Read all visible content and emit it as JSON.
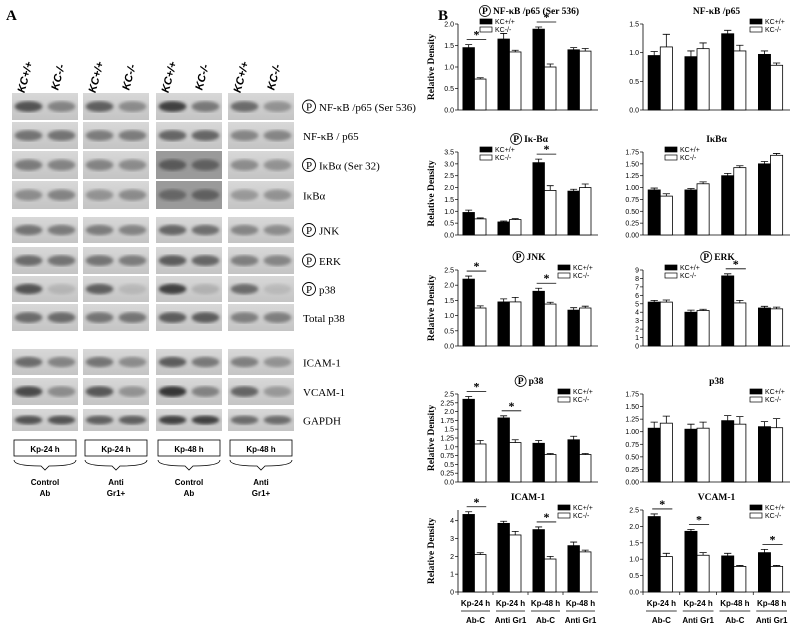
{
  "panel_a": {
    "label": "A",
    "lanes": [
      "KC+/+",
      "KC-/-",
      "KC+/+",
      "KC-/-",
      "KC+/+",
      "KC-/-",
      "KC+/+",
      "KC-/-"
    ],
    "rows": [
      {
        "label": "NF-κB /p65 (Ser 536)",
        "marker": "P"
      },
      {
        "label": "NF-κB / p65"
      },
      {
        "label": "IκBα  (Ser 32)",
        "marker": "P"
      },
      {
        "label": "IκBα"
      },
      {
        "label": "JNK",
        "marker": "P"
      },
      {
        "label": "ERK",
        "marker": "P"
      },
      {
        "label": "p38",
        "marker": "P"
      },
      {
        "label": "Total p38"
      },
      {
        "label": "ICAM-1"
      },
      {
        "label": "VCAM-1"
      },
      {
        "label": "GAPDH"
      }
    ],
    "time_labels": [
      "Kp-24 h",
      "Kp-24 h",
      "Kp-48 h",
      "Kp-48 h"
    ],
    "treatment_labels": [
      [
        "Control",
        "Ab"
      ],
      [
        "Anti",
        "Gr1+"
      ],
      [
        "Control",
        "Ab"
      ],
      [
        "Anti",
        "Gr1+"
      ]
    ]
  },
  "panel_b": {
    "label": "B"
  },
  "chart_data": [
    {
      "type": "bar",
      "title": "NF-κB /p65 (Ser 536)",
      "title_marker": "P",
      "ylabel": "Relative Density",
      "ylim": [
        0,
        2.0
      ],
      "yticks": [
        {
          "value": 0,
          "label": "0.0"
        },
        0.5,
        {
          "value": 1,
          "label": "1.0"
        },
        1.5,
        {
          "value": 2,
          "label": "2.0"
        }
      ],
      "series": [
        {
          "name": "KC+/+",
          "color": "#000000",
          "values": [
            1.45,
            1.65,
            1.88,
            1.4
          ],
          "errors": [
            0.07,
            0.13,
            0.05,
            0.05
          ]
        },
        {
          "name": "KC-/-",
          "color": "#ffffff",
          "values": [
            0.72,
            1.35,
            1.0,
            1.37
          ],
          "errors": [
            0.03,
            0.04,
            0.07,
            0.06
          ]
        }
      ],
      "significance": [
        {
          "group": 0,
          "label": "*"
        },
        {
          "group": 2,
          "label": "*"
        }
      ],
      "legend": "upper-left"
    },
    {
      "type": "bar",
      "title": "NF-κB /p65",
      "ylim": [
        0,
        1.5
      ],
      "yticks": [
        {
          "value": 0,
          "label": "0.0"
        },
        0.5,
        {
          "value": 1,
          "label": "1.0"
        },
        1.5
      ],
      "series": [
        {
          "name": "KC+/+",
          "color": "#000000",
          "values": [
            0.95,
            0.93,
            1.33,
            0.97
          ],
          "errors": [
            0.07,
            0.1,
            0.06,
            0.06
          ]
        },
        {
          "name": "KC-/-",
          "color": "#ffffff",
          "values": [
            1.1,
            1.07,
            1.03,
            0.78
          ],
          "errors": [
            0.22,
            0.1,
            0.1,
            0.04
          ]
        }
      ],
      "significance": []
    },
    {
      "type": "bar",
      "title": "Iκ-Bα",
      "title_marker": "P",
      "ylabel": "Relative Density",
      "ylim": [
        0,
        3.5
      ],
      "yticks": [
        {
          "value": 0,
          "label": "0.0"
        },
        0.5,
        {
          "value": 1,
          "label": "1.0"
        },
        1.5,
        {
          "value": 2,
          "label": "2.0"
        },
        2.5,
        {
          "value": 3,
          "label": "3.0"
        },
        3.5
      ],
      "series": [
        {
          "name": "KC+/+",
          "color": "#000000",
          "values": [
            0.95,
            0.55,
            3.05,
            1.85
          ],
          "errors": [
            0.1,
            0.04,
            0.15,
            0.08
          ]
        },
        {
          "name": "KC-/-",
          "color": "#ffffff",
          "values": [
            0.68,
            0.65,
            1.88,
            2.0
          ],
          "errors": [
            0.04,
            0.04,
            0.2,
            0.15
          ]
        }
      ],
      "significance": [
        {
          "group": 2,
          "label": "*"
        }
      ],
      "legend": "upper-left"
    },
    {
      "type": "bar",
      "title": "IκBα",
      "ylim": [
        0,
        1.75
      ],
      "yticks": [
        {
          "value": 0,
          "label": "0.00"
        },
        0.25,
        {
          "value": 0.5,
          "label": "0.50"
        },
        0.75,
        {
          "value": 1,
          "label": "1.00"
        },
        1.25,
        {
          "value": 1.5,
          "label": "1.50"
        },
        1.75
      ],
      "series": [
        {
          "name": "KC+/+",
          "color": "#000000",
          "values": [
            0.95,
            0.95,
            1.25,
            1.5
          ],
          "errors": [
            0.04,
            0.03,
            0.05,
            0.05
          ]
        },
        {
          "name": "KC-/-",
          "color": "#ffffff",
          "values": [
            0.82,
            1.08,
            1.42,
            1.68
          ],
          "errors": [
            0.05,
            0.04,
            0.04,
            0.04
          ]
        }
      ],
      "significance": [],
      "legend": "upper-left"
    },
    {
      "type": "bar",
      "title": "JNK",
      "title_marker": "P",
      "ylabel": "Relative Density",
      "ylim": [
        0,
        2.5
      ],
      "yticks": [
        {
          "value": 0,
          "label": "0.0"
        },
        0.5,
        {
          "value": 1,
          "label": "1.0"
        },
        1.5,
        {
          "value": 2,
          "label": "2.0"
        },
        2.5
      ],
      "series": [
        {
          "name": "KC+/+",
          "color": "#000000",
          "values": [
            2.2,
            1.45,
            1.8,
            1.18
          ],
          "errors": [
            0.1,
            0.1,
            0.1,
            0.08
          ]
        },
        {
          "name": "KC-/-",
          "color": "#ffffff",
          "values": [
            1.25,
            1.45,
            1.38,
            1.25
          ],
          "errors": [
            0.07,
            0.15,
            0.06,
            0.06
          ]
        }
      ],
      "significance": [
        {
          "group": 0,
          "label": "*"
        },
        {
          "group": 2,
          "label": "*"
        }
      ],
      "legend": "upper-right"
    },
    {
      "type": "bar",
      "title": "ERK",
      "title_marker": "P",
      "ylim": [
        0,
        9
      ],
      "yticks": [
        0,
        1,
        2,
        3,
        4,
        5,
        6,
        7,
        8,
        9
      ],
      "series": [
        {
          "name": "KC+/+",
          "color": "#000000",
          "values": [
            5.2,
            4.0,
            8.3,
            4.5
          ],
          "errors": [
            0.2,
            0.25,
            0.25,
            0.2
          ]
        },
        {
          "name": "KC-/-",
          "color": "#ffffff",
          "values": [
            5.2,
            4.2,
            5.1,
            4.4
          ],
          "errors": [
            0.25,
            0.15,
            0.3,
            0.2
          ]
        }
      ],
      "significance": [
        {
          "group": 2,
          "label": "*"
        }
      ],
      "legend": "upper-left"
    },
    {
      "type": "bar",
      "title": "p38",
      "title_marker": "P",
      "ylabel": "Relative Density",
      "ylim": [
        0,
        2.5
      ],
      "yticks": [
        {
          "value": 0,
          "label": "0.0"
        },
        0.25,
        {
          "value": 0.5,
          "label": "0.5"
        },
        0.75,
        {
          "value": 1,
          "label": "1.0"
        },
        1.25,
        1.5,
        1.75,
        {
          "value": 2,
          "label": "2.0"
        },
        2.25,
        2.5
      ],
      "series": [
        {
          "name": "KC+/+",
          "color": "#000000",
          "values": [
            2.35,
            1.82,
            1.1,
            1.2
          ],
          "errors": [
            0.08,
            0.06,
            0.08,
            0.1
          ]
        },
        {
          "name": "KC-/-",
          "color": "#ffffff",
          "values": [
            1.08,
            1.12,
            0.78,
            0.78
          ],
          "errors": [
            0.1,
            0.08,
            0.03,
            0.03
          ]
        }
      ],
      "significance": [
        {
          "group": 0,
          "label": "*"
        },
        {
          "group": 1,
          "label": "*"
        }
      ],
      "legend": "upper-right"
    },
    {
      "type": "bar",
      "title": "p38",
      "ylim": [
        0,
        1.75
      ],
      "yticks": [
        {
          "value": 0,
          "label": "0.00"
        },
        0.25,
        {
          "value": 0.5,
          "label": "0.50"
        },
        0.75,
        {
          "value": 1,
          "label": "1.00"
        },
        1.25,
        {
          "value": 1.5,
          "label": "1.50"
        },
        1.75
      ],
      "series": [
        {
          "name": "KC+/+",
          "color": "#000000",
          "values": [
            1.07,
            1.05,
            1.22,
            1.1
          ],
          "errors": [
            0.12,
            0.1,
            0.1,
            0.1
          ]
        },
        {
          "name": "KC-/-",
          "color": "#ffffff",
          "values": [
            1.17,
            1.07,
            1.15,
            1.08
          ],
          "errors": [
            0.14,
            0.12,
            0.15,
            0.18
          ]
        }
      ],
      "significance": [],
      "legend": "upper-right"
    },
    {
      "type": "bar",
      "title": "ICAM-1",
      "ylabel": "Relative Density",
      "ylim": [
        0,
        4.6
      ],
      "yticks": [
        0,
        1,
        2,
        3,
        4
      ],
      "categories": [
        "Ab-C",
        "Anti Gr1",
        "Ab-C",
        "Anti Gr1"
      ],
      "timepoints": [
        "Kp-24 h",
        "Kp-24 h",
        "Kp-48 h",
        "Kp-48 h"
      ],
      "series": [
        {
          "name": "KC+/+",
          "color": "#000000",
          "values": [
            4.35,
            3.85,
            3.5,
            2.6
          ],
          "errors": [
            0.15,
            0.12,
            0.15,
            0.2
          ]
        },
        {
          "name": "KC-/-",
          "color": "#ffffff",
          "values": [
            2.1,
            3.2,
            1.85,
            2.25
          ],
          "errors": [
            0.1,
            0.2,
            0.15,
            0.1
          ]
        }
      ],
      "significance": [
        {
          "group": 0,
          "label": "*"
        },
        {
          "group": 2,
          "label": "*"
        }
      ],
      "legend": "upper-right"
    },
    {
      "type": "bar",
      "title": "VCAM-1",
      "ylim": [
        0,
        2.5
      ],
      "yticks": [
        {
          "value": 0,
          "label": "0.0"
        },
        0.5,
        {
          "value": 1,
          "label": "1.0"
        },
        1.5,
        {
          "value": 2,
          "label": "2.0"
        },
        2.5
      ],
      "categories": [
        "Ab-C",
        "Anti Gr1",
        "Ab-C",
        "Anti Gr1"
      ],
      "timepoints": [
        "Kp-24 h",
        "Kp-24 h",
        "Kp-48 h",
        "Kp-48 h"
      ],
      "series": [
        {
          "name": "KC+/+",
          "color": "#000000",
          "values": [
            2.3,
            1.85,
            1.1,
            1.2
          ],
          "errors": [
            0.08,
            0.06,
            0.08,
            0.1
          ]
        },
        {
          "name": "KC-/-",
          "color": "#ffffff",
          "values": [
            1.08,
            1.12,
            0.78,
            0.78
          ],
          "errors": [
            0.1,
            0.08,
            0.03,
            0.03
          ]
        }
      ],
      "significance": [
        {
          "group": 0,
          "label": "*"
        },
        {
          "group": 1,
          "label": "*"
        },
        {
          "group": 3,
          "label": "*"
        }
      ],
      "legend": "upper-right"
    }
  ]
}
